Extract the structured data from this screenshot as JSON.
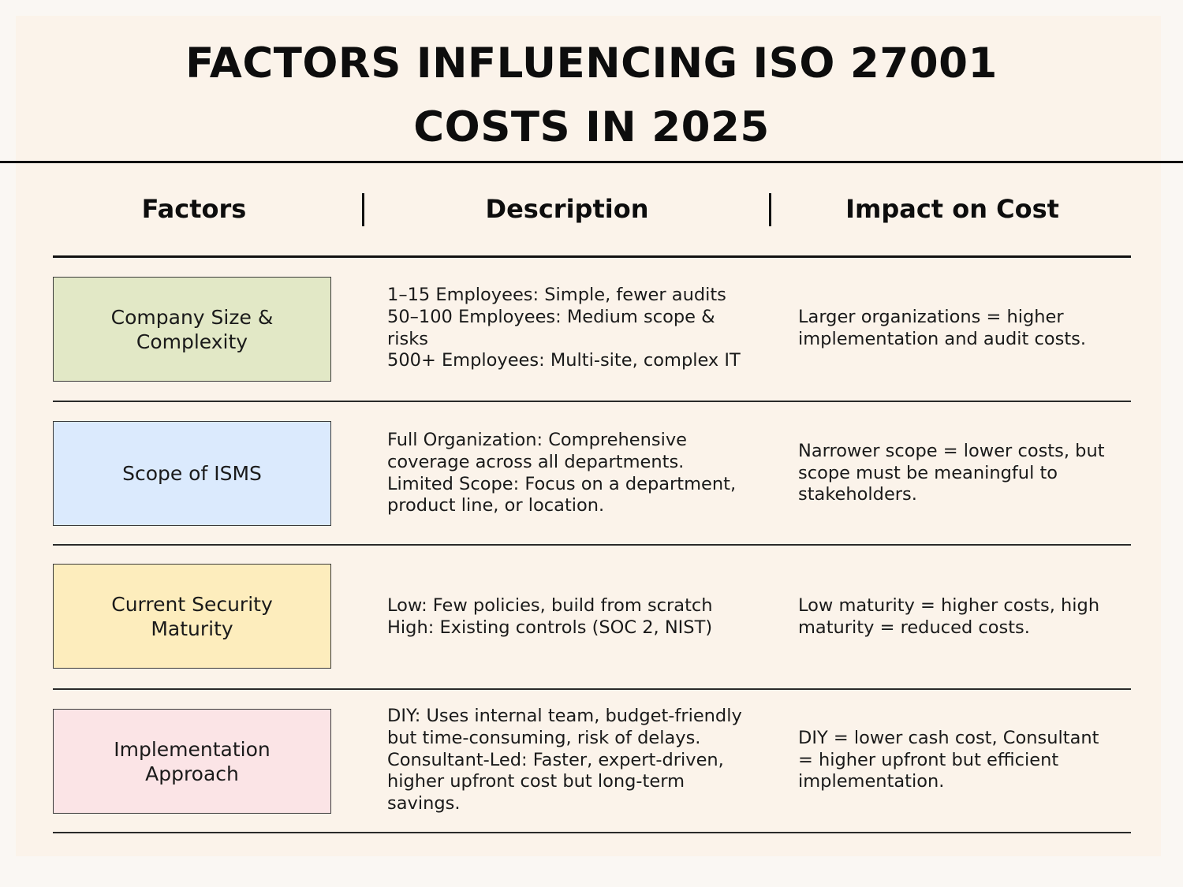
{
  "title": {
    "line1": "FACTORS INFLUENCING ISO 27001",
    "line2": "COSTS IN 2025"
  },
  "headers": {
    "factors": "Factors",
    "description": "Description",
    "impact": "Impact on Cost"
  },
  "colors": {
    "background": "#fbf3ea",
    "company_size": "#e2e8c6",
    "scope": "#dbeafd",
    "maturity": "#fdedbd",
    "approach": "#fbe4e6"
  },
  "rows": [
    {
      "factor": "Company Size & Complexity",
      "description": [
        "1–15 Employees: Simple, fewer audits",
        "50–100 Employees: Medium scope & risks",
        "500+ Employees: Multi-site, complex IT"
      ],
      "impact": "Larger organizations = higher implementation and audit costs."
    },
    {
      "factor": "Scope of ISMS",
      "description": [
        "Full Organization: Comprehensive coverage across all departments.",
        "Limited Scope: Focus on a department, product line, or location."
      ],
      "impact": "Narrower scope = lower costs, but scope must be meaningful to stakeholders."
    },
    {
      "factor": "Current Security Maturity",
      "description": [
        "Low: Few policies, build from scratch",
        "High: Existing controls (SOC 2, NIST)"
      ],
      "impact": "Low maturity = higher costs, high maturity = reduced costs."
    },
    {
      "factor": "Implementation Approach",
      "description": [
        "DIY: Uses internal team, budget-friendly but time-consuming, risk of delays.",
        "Consultant-Led: Faster, expert-driven, higher upfront cost but long-term savings."
      ],
      "impact": "DIY = lower cash cost, Consultant = higher upfront but efficient implementation."
    }
  ]
}
